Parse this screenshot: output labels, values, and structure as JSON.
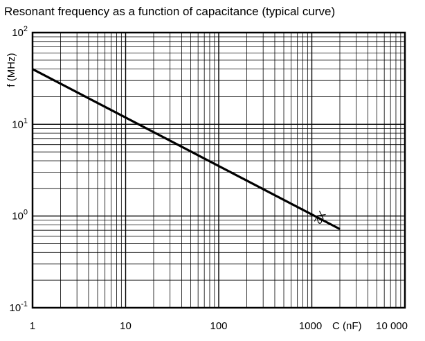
{
  "chart_data": {
    "type": "line",
    "title": "Resonant frequency as a function of capacitance (typical curve)",
    "xlabel": "C (nF)",
    "ylabel": "f (MHz)",
    "xscale": "log",
    "yscale": "log",
    "xlim": [
      1,
      10000
    ],
    "ylim": [
      0.1,
      100
    ],
    "grid": true,
    "x_ticks": [
      {
        "value": 1,
        "label": "1"
      },
      {
        "value": 10,
        "label": "10"
      },
      {
        "value": 100,
        "label": "100"
      },
      {
        "value": 1000,
        "label": "1000"
      },
      {
        "value": 10000,
        "label": "10 000"
      }
    ],
    "y_ticks": [
      {
        "value": 0.1,
        "base": "10",
        "exp": "-1"
      },
      {
        "value": 1,
        "base": "10",
        "exp": "0"
      },
      {
        "value": 10,
        "base": "10",
        "exp": "1"
      },
      {
        "value": 100,
        "base": "10",
        "exp": "2"
      }
    ],
    "series": [
      {
        "name": "X2",
        "x": [
          1,
          2000
        ],
        "y": [
          40,
          0.72
        ]
      }
    ],
    "colors": {
      "line": "#000000",
      "grid": "#000000",
      "background": "#ffffff"
    }
  }
}
